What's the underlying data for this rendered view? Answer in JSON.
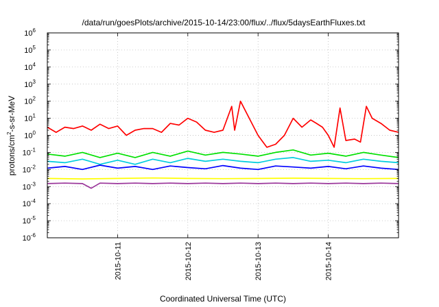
{
  "chart_data": {
    "type": "line",
    "title": "/data/run/goesPlots/archive/2015-10-14/23:00/flux/../flux/5daysEarthFluxes.txt",
    "xlabel": "Coordinated Universal Time (UTC)",
    "ylabel": "protons/cm2-s-sr-MeV",
    "ylabel_parts": {
      "base": "protons/cm",
      "sup": "2",
      "rest": "-s-sr-MeV"
    },
    "x_range": [
      "2015-10-10 00:00",
      "2015-10-15 00:00"
    ],
    "x_ticks": [
      "2015-10-11",
      "2015-10-12",
      "2015-10-13",
      "2015-10-14"
    ],
    "y_scale": "log",
    "ylim": [
      1e-06,
      1000000.0
    ],
    "y_ticks": [
      {
        "value": 1e-06,
        "base": "10",
        "exp": "-6"
      },
      {
        "value": 1e-05,
        "base": "10",
        "exp": "-5"
      },
      {
        "value": 0.0001,
        "base": "10",
        "exp": "-4"
      },
      {
        "value": 0.001,
        "base": "10",
        "exp": "-3"
      },
      {
        "value": 0.01,
        "base": "10",
        "exp": "-2"
      },
      {
        "value": 0.1,
        "base": "10",
        "exp": "-1"
      },
      {
        "value": 1,
        "base": "10",
        "exp": "0"
      },
      {
        "value": 10,
        "base": "10",
        "exp": "1"
      },
      {
        "value": 100,
        "base": "10",
        "exp": "2"
      },
      {
        "value": 1000,
        "base": "10",
        "exp": "3"
      },
      {
        "value": 10000,
        "base": "10",
        "exp": "4"
      },
      {
        "value": 100000,
        "base": "10",
        "exp": "5"
      },
      {
        "value": 1000000,
        "base": "10",
        "exp": "6"
      }
    ],
    "grid": true,
    "legend": "none",
    "series": [
      {
        "color": "#ff0000",
        "x": [
          "2015-10-10 00:00",
          "2015-10-10 03:00",
          "2015-10-10 06:00",
          "2015-10-10 09:00",
          "2015-10-10 12:00",
          "2015-10-10 15:00",
          "2015-10-10 18:00",
          "2015-10-10 21:00",
          "2015-10-11 00:00",
          "2015-10-11 03:00",
          "2015-10-11 06:00",
          "2015-10-11 09:00",
          "2015-10-11 12:00",
          "2015-10-11 15:00",
          "2015-10-11 18:00",
          "2015-10-11 21:00",
          "2015-10-12 00:00",
          "2015-10-12 03:00",
          "2015-10-12 06:00",
          "2015-10-12 09:00",
          "2015-10-12 12:00",
          "2015-10-12 15:00",
          "2015-10-12 16:00",
          "2015-10-12 18:00",
          "2015-10-12 21:00",
          "2015-10-13 00:00",
          "2015-10-13 03:00",
          "2015-10-13 06:00",
          "2015-10-13 09:00",
          "2015-10-13 12:00",
          "2015-10-13 15:00",
          "2015-10-13 18:00",
          "2015-10-13 20:00",
          "2015-10-13 22:00",
          "2015-10-14 00:00",
          "2015-10-14 02:00",
          "2015-10-14 04:00",
          "2015-10-14 06:00",
          "2015-10-14 09:00",
          "2015-10-14 11:00",
          "2015-10-14 13:00",
          "2015-10-14 15:00",
          "2015-10-14 18:00",
          "2015-10-14 21:00",
          "2015-10-15 00:00"
        ],
        "values": [
          3.0,
          1.5,
          3.0,
          2.5,
          3.5,
          2.0,
          4.5,
          2.5,
          3.5,
          1.0,
          2.0,
          2.5,
          2.5,
          1.5,
          5.0,
          4.0,
          10.0,
          6.0,
          2.0,
          1.5,
          2.0,
          50.0,
          2.0,
          100.0,
          10.0,
          1.0,
          0.2,
          0.3,
          1.0,
          10.0,
          3.0,
          8.0,
          5.0,
          3.0,
          1.0,
          0.2,
          40.0,
          0.5,
          0.6,
          0.4,
          50.0,
          10.0,
          5.0,
          2.0,
          1.5
        ]
      },
      {
        "color": "#00e000",
        "x": [
          "2015-10-10 00:00",
          "2015-10-10 06:00",
          "2015-10-10 12:00",
          "2015-10-10 18:00",
          "2015-10-11 00:00",
          "2015-10-11 06:00",
          "2015-10-11 12:00",
          "2015-10-11 18:00",
          "2015-10-12 00:00",
          "2015-10-12 06:00",
          "2015-10-12 12:00",
          "2015-10-12 18:00",
          "2015-10-13 00:00",
          "2015-10-13 06:00",
          "2015-10-13 12:00",
          "2015-10-13 18:00",
          "2015-10-14 00:00",
          "2015-10-14 06:00",
          "2015-10-14 12:00",
          "2015-10-14 18:00",
          "2015-10-15 00:00"
        ],
        "values": [
          0.08,
          0.06,
          0.1,
          0.05,
          0.09,
          0.05,
          0.1,
          0.06,
          0.12,
          0.07,
          0.1,
          0.08,
          0.06,
          0.1,
          0.14,
          0.07,
          0.09,
          0.06,
          0.1,
          0.07,
          0.05
        ]
      },
      {
        "color": "#00ccdd",
        "x": [
          "2015-10-10 00:00",
          "2015-10-10 06:00",
          "2015-10-10 12:00",
          "2015-10-10 18:00",
          "2015-10-11 00:00",
          "2015-10-11 06:00",
          "2015-10-11 12:00",
          "2015-10-11 18:00",
          "2015-10-12 00:00",
          "2015-10-12 06:00",
          "2015-10-12 12:00",
          "2015-10-12 18:00",
          "2015-10-13 00:00",
          "2015-10-13 06:00",
          "2015-10-13 12:00",
          "2015-10-13 18:00",
          "2015-10-14 00:00",
          "2015-10-14 06:00",
          "2015-10-14 12:00",
          "2015-10-14 18:00",
          "2015-10-15 00:00"
        ],
        "values": [
          0.03,
          0.025,
          0.04,
          0.02,
          0.035,
          0.02,
          0.04,
          0.025,
          0.045,
          0.03,
          0.04,
          0.03,
          0.025,
          0.04,
          0.05,
          0.03,
          0.035,
          0.025,
          0.04,
          0.03,
          0.025
        ]
      },
      {
        "color": "#0000ff",
        "x": [
          "2015-10-10 00:00",
          "2015-10-10 06:00",
          "2015-10-10 12:00",
          "2015-10-10 18:00",
          "2015-10-11 00:00",
          "2015-10-11 06:00",
          "2015-10-11 12:00",
          "2015-10-11 18:00",
          "2015-10-12 00:00",
          "2015-10-12 06:00",
          "2015-10-12 12:00",
          "2015-10-12 18:00",
          "2015-10-13 00:00",
          "2015-10-13 06:00",
          "2015-10-13 12:00",
          "2015-10-13 18:00",
          "2015-10-14 00:00",
          "2015-10-14 06:00",
          "2015-10-14 12:00",
          "2015-10-14 18:00",
          "2015-10-15 00:00"
        ],
        "values": [
          0.012,
          0.015,
          0.01,
          0.018,
          0.012,
          0.015,
          0.01,
          0.016,
          0.013,
          0.011,
          0.017,
          0.012,
          0.01,
          0.016,
          0.014,
          0.012,
          0.015,
          0.011,
          0.016,
          0.012,
          0.01
        ]
      },
      {
        "color": "#ffff00",
        "x": [
          "2015-10-10 00:00",
          "2015-10-10 12:00",
          "2015-10-11 00:00",
          "2015-10-11 12:00",
          "2015-10-12 00:00",
          "2015-10-12 12:00",
          "2015-10-13 00:00",
          "2015-10-13 12:00",
          "2015-10-14 00:00",
          "2015-10-14 12:00",
          "2015-10-15 00:00"
        ],
        "values": [
          0.003,
          0.0028,
          0.003,
          0.0032,
          0.003,
          0.0029,
          0.003,
          0.0031,
          0.003,
          0.0029,
          0.003
        ]
      },
      {
        "color": "#993399",
        "x": [
          "2015-10-10 00:00",
          "2015-10-10 06:00",
          "2015-10-10 12:00",
          "2015-10-10 15:00",
          "2015-10-10 18:00",
          "2015-10-11 00:00",
          "2015-10-11 06:00",
          "2015-10-11 12:00",
          "2015-10-11 18:00",
          "2015-10-12 00:00",
          "2015-10-12 06:00",
          "2015-10-12 12:00",
          "2015-10-12 18:00",
          "2015-10-13 00:00",
          "2015-10-13 06:00",
          "2015-10-13 12:00",
          "2015-10-13 18:00",
          "2015-10-14 00:00",
          "2015-10-14 06:00",
          "2015-10-14 12:00",
          "2015-10-14 18:00",
          "2015-10-15 00:00"
        ],
        "values": [
          0.0015,
          0.0016,
          0.0015,
          0.0008,
          0.0016,
          0.0015,
          0.0016,
          0.0015,
          0.0016,
          0.0015,
          0.0016,
          0.0015,
          0.0016,
          0.0015,
          0.0016,
          0.0015,
          0.0016,
          0.0015,
          0.0016,
          0.0015,
          0.0016,
          0.0015
        ]
      }
    ]
  }
}
